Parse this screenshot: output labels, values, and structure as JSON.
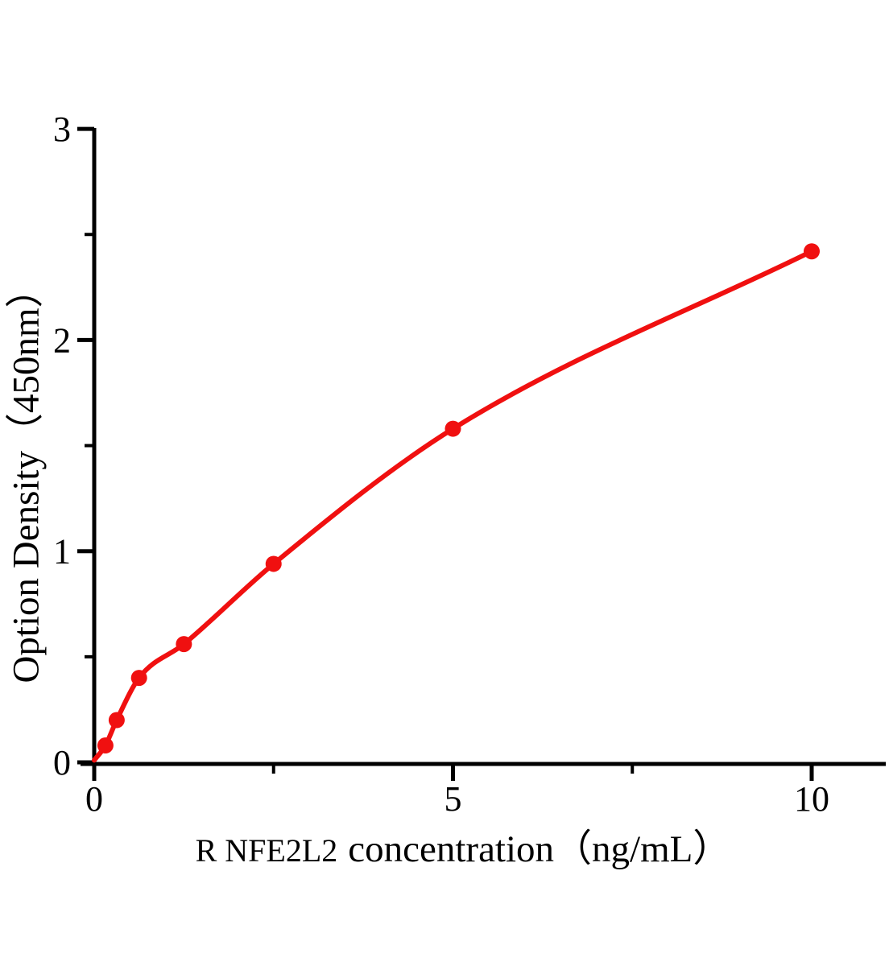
{
  "chart_data": {
    "type": "scatter",
    "title": "",
    "xlabel": "R NFE2L2 concentration（ng/mL）",
    "xlabel_prefix": "R NFE2L2",
    "xlabel_rest": "concentration（ng/mL）",
    "ylabel": "Option Density（450nm）",
    "x": [
      0.156,
      0.313,
      0.625,
      1.25,
      2.5,
      5,
      10
    ],
    "y": [
      0.08,
      0.2,
      0.4,
      0.56,
      0.94,
      1.58,
      2.42
    ],
    "curve_start": {
      "x": 0,
      "y": 0.01
    },
    "xlim": [
      0,
      11
    ],
    "ylim": [
      0,
      3
    ],
    "x_major_ticks": {
      "values": [
        0,
        5,
        10
      ],
      "labels": [
        "0",
        "5",
        "10"
      ]
    },
    "x_minor_ticks": [
      2.5,
      7.5
    ],
    "y_major_ticks": {
      "values": [
        0,
        1,
        2,
        3
      ],
      "labels": [
        "0",
        "1",
        "2",
        "3"
      ]
    },
    "y_minor_ticks": [
      0.5,
      1.5,
      2.5
    ],
    "grid": false,
    "legend": "none",
    "colors": {
      "curve": "#f01010",
      "point": "#f01010",
      "axis": "#000000",
      "text": "#000000",
      "background": "#ffffff"
    }
  }
}
